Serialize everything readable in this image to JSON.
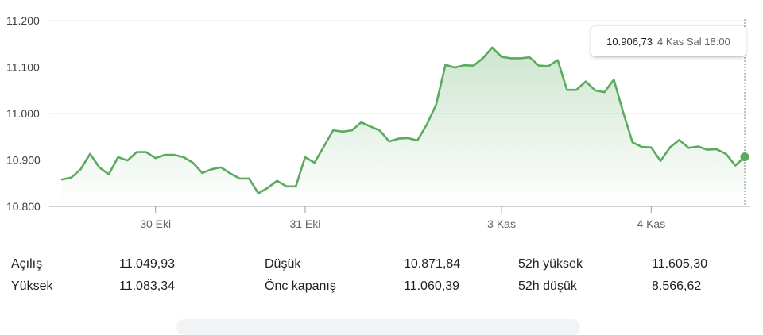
{
  "chart_data": {
    "type": "area",
    "y_ticks": [
      "11.200",
      "11.100",
      "11.000",
      "10.900",
      "10.800"
    ],
    "y_tick_values": [
      11200,
      11100,
      11000,
      10900,
      10800
    ],
    "ylim": [
      10800,
      11200
    ],
    "x_ticks": [
      "30 Eki",
      "31 Eki",
      "3 Kas",
      "4 Kas"
    ],
    "x_tick_index": [
      10,
      26,
      47,
      63
    ],
    "series": [
      {
        "color": "#5aaa5f",
        "values": [
          10858,
          10862,
          10880,
          10913,
          10884,
          10869,
          10906,
          10899,
          10917,
          10917,
          10904,
          10911,
          10911,
          10906,
          10894,
          10872,
          10880,
          10884,
          10871,
          10860,
          10860,
          10828,
          10840,
          10855,
          10843,
          10843,
          10906,
          10894,
          10929,
          10964,
          10961,
          10964,
          10981,
          10972,
          10963,
          10940,
          10946,
          10947,
          10942,
          10976,
          11019,
          11105,
          11099,
          11104,
          11103,
          11119,
          11142,
          11122,
          11119,
          11119,
          11121,
          11103,
          11102,
          11115,
          11051,
          11051,
          11069,
          11050,
          11046,
          11073,
          11003,
          10938,
          10928,
          10927,
          10898,
          10927,
          10943,
          10926,
          10929,
          10922,
          10923,
          10913,
          10888,
          10906.73
        ]
      }
    ],
    "tooltip": {
      "value": "10.906,73",
      "time": "4 Kas Sal 18:00"
    },
    "grid": true
  },
  "stats": [
    {
      "label": "Açılış",
      "value": "11.049,93"
    },
    {
      "label": "Yüksek",
      "value": "11.083,34"
    },
    {
      "label": "Düşük",
      "value": "10.871,84"
    },
    {
      "label": "Önc kapanış",
      "value": "11.060,39"
    },
    {
      "label": "52h yüksek",
      "value": "11.605,30"
    },
    {
      "label": "52h düşük",
      "value": "8.566,62"
    }
  ]
}
